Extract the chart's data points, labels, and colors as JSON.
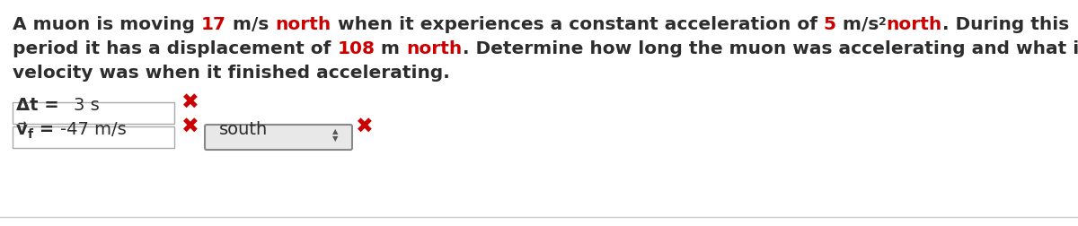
{
  "bg_color": "#ffffff",
  "border_color": "#cccccc",
  "para_line1": [
    {
      "text": "A muon is moving ",
      "color": "#2d2d2d",
      "bold": true,
      "size": 14.5
    },
    {
      "text": "17",
      "color": "#cc0000",
      "bold": true,
      "size": 14.5
    },
    {
      "text": " m/s ",
      "color": "#2d2d2d",
      "bold": true,
      "size": 14.5
    },
    {
      "text": "north",
      "color": "#cc0000",
      "bold": true,
      "size": 14.5
    },
    {
      "text": " when it experiences a constant acceleration of ",
      "color": "#2d2d2d",
      "bold": true,
      "size": 14.5
    },
    {
      "text": "5",
      "color": "#cc0000",
      "bold": true,
      "size": 14.5
    },
    {
      "text": " m/s",
      "color": "#2d2d2d",
      "bold": true,
      "size": 14.5
    },
    {
      "text": "2",
      "color": "#2d2d2d",
      "bold": true,
      "size": 9,
      "super": true
    },
    {
      "text": "north",
      "color": "#cc0000",
      "bold": true,
      "size": 14.5
    },
    {
      "text": ". During this",
      "color": "#2d2d2d",
      "bold": true,
      "size": 14.5
    }
  ],
  "para_line2": [
    {
      "text": "period it has a displacement of ",
      "color": "#2d2d2d",
      "bold": true,
      "size": 14.5
    },
    {
      "text": "108",
      "color": "#cc0000",
      "bold": true,
      "size": 14.5
    },
    {
      "text": " m ",
      "color": "#2d2d2d",
      "bold": true,
      "size": 14.5
    },
    {
      "text": "north",
      "color": "#cc0000",
      "bold": true,
      "size": 14.5
    },
    {
      "text": ". Determine how long the muon was accelerating and what its",
      "color": "#2d2d2d",
      "bold": true,
      "size": 14.5
    }
  ],
  "para_line3": [
    {
      "text": "velocity was when it finished accelerating.",
      "color": "#2d2d2d",
      "bold": true,
      "size": 14.5
    }
  ],
  "row1_label": "Δt = ",
  "row1_value": "3 s",
  "row2_value": "-47 m/s",
  "dropdown_text": "south",
  "cross_color": "#cc0000",
  "label_color": "#2d2d2d",
  "label_size": 14
}
